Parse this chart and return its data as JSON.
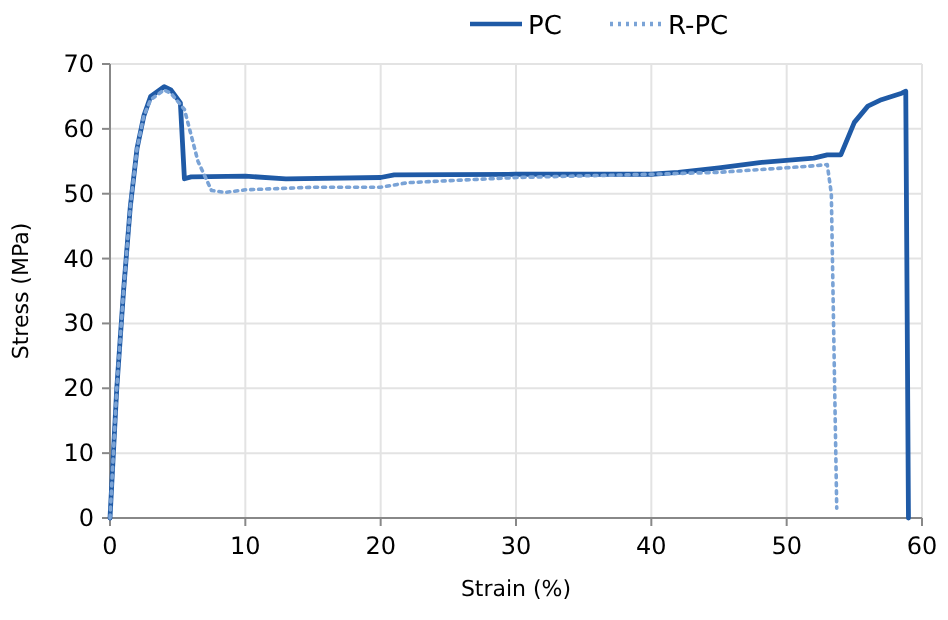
{
  "chart_data": {
    "type": "line",
    "xlabel": "Strain (%)",
    "ylabel": "Stress (MPa)",
    "xlim": [
      0,
      60
    ],
    "xticks": [
      0,
      10,
      20,
      30,
      40,
      50,
      60
    ],
    "ylim": [
      0,
      70
    ],
    "yticks": [
      0,
      10,
      20,
      30,
      40,
      50,
      60,
      70
    ],
    "grid": true,
    "legend": "top",
    "marker": "none",
    "series": [
      {
        "name": "PC",
        "color": "#1f5aa6",
        "line_style": "solid",
        "x": [
          0,
          0.5,
          1,
          1.5,
          2,
          2.5,
          3,
          4,
          4.5,
          5.2,
          5.5,
          6,
          10,
          13,
          20,
          21,
          30,
          35,
          40,
          42,
          45,
          48,
          52,
          53,
          54,
          55,
          56,
          57,
          58.5,
          58.8,
          59
        ],
        "values": [
          0,
          20,
          35,
          48,
          57,
          62,
          65,
          66.5,
          66,
          64,
          52.3,
          52.6,
          52.7,
          52.3,
          52.5,
          52.9,
          53,
          53,
          53,
          53.3,
          54,
          54.8,
          55.5,
          56,
          56,
          61,
          63.5,
          64.5,
          65.5,
          65.8,
          0
        ]
      },
      {
        "name": "R-PC",
        "color": "#7aa3d6",
        "line_style": "dotted",
        "x": [
          0,
          0.5,
          1,
          1.5,
          2,
          2.5,
          3,
          4,
          4.5,
          5.5,
          6.5,
          7.5,
          8.5,
          10,
          15,
          20,
          22,
          30,
          40,
          45,
          50,
          52,
          53,
          53.3,
          53.7
        ],
        "values": [
          0,
          20,
          35,
          48,
          57,
          62,
          64.5,
          66,
          65.5,
          63,
          55,
          50.5,
          50.2,
          50.6,
          51,
          51,
          51.7,
          52.5,
          53,
          53.3,
          54,
          54.3,
          54.5,
          50,
          1.5
        ]
      }
    ]
  }
}
